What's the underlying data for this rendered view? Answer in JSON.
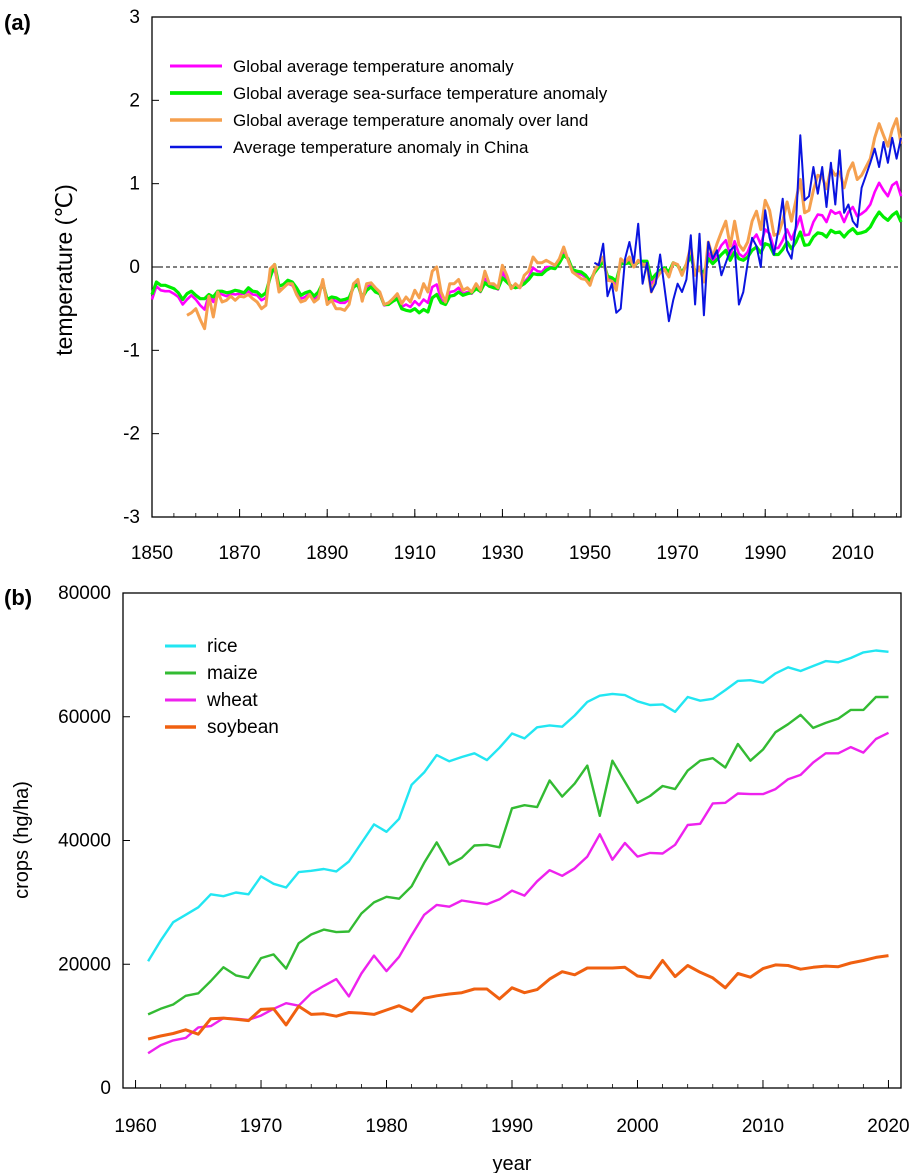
{
  "chart_data": [
    {
      "panel_label": "(a)",
      "type": "line",
      "xlabel": "",
      "ylabel": "temperature (℃)",
      "xlim": [
        1850,
        2021
      ],
      "ylim": [
        -3,
        3
      ],
      "x_ticks": [
        "1850",
        "1870",
        "1890",
        "1910",
        "1930",
        "1950",
        "1970",
        "1990",
        "2010"
      ],
      "y_ticks": [
        "3",
        "2",
        "1",
        "0",
        "-1",
        "-2",
        "-3"
      ],
      "reference_line": 0,
      "grid": false,
      "legend_position": "top-left",
      "series": [
        {
          "name": "Global average temperature anomaly",
          "color": "#ff00ff",
          "x_start": 1850,
          "values": [
            -0.39,
            -0.23,
            -0.28,
            -0.29,
            -0.29,
            -0.32,
            -0.36,
            -0.45,
            -0.39,
            -0.34,
            -0.39,
            -0.46,
            -0.51,
            -0.33,
            -0.42,
            -0.3,
            -0.33,
            -0.35,
            -0.32,
            -0.33,
            -0.32,
            -0.32,
            -0.29,
            -0.33,
            -0.34,
            -0.4,
            -0.37,
            -0.1,
            -0.02,
            -0.28,
            -0.25,
            -0.2,
            -0.22,
            -0.3,
            -0.38,
            -0.36,
            -0.31,
            -0.39,
            -0.34,
            -0.19,
            -0.42,
            -0.38,
            -0.41,
            -0.43,
            -0.43,
            -0.39,
            -0.22,
            -0.2,
            -0.39,
            -0.24,
            -0.22,
            -0.29,
            -0.33,
            -0.46,
            -0.45,
            -0.4,
            -0.36,
            -0.48,
            -0.45,
            -0.48,
            -0.41,
            -0.46,
            -0.39,
            -0.43,
            -0.24,
            -0.21,
            -0.39,
            -0.44,
            -0.3,
            -0.29,
            -0.25,
            -0.32,
            -0.3,
            -0.32,
            -0.24,
            -0.3,
            -0.14,
            -0.22,
            -0.24,
            -0.27,
            -0.06,
            -0.16,
            -0.25,
            -0.24,
            -0.25,
            -0.18,
            -0.12,
            -0.01,
            -0.05,
            -0.06,
            0,
            0,
            -0.01,
            0.07,
            0.18,
            0.09,
            -0.05,
            -0.07,
            -0.09,
            -0.12,
            -0.19,
            -0.06,
            0.01,
            0.08,
            -0.13,
            -0.15,
            -0.21,
            0.06,
            0.04,
            0.07,
            0,
            0.06,
            0.05,
            0.05,
            -0.2,
            -0.11,
            -0.05,
            -0.02,
            -0.08,
            0.05,
            0.03,
            -0.08,
            0.03,
            0.17,
            -0.07,
            -0.02,
            -0.11,
            0.17,
            0.07,
            0.16,
            0.26,
            0.32,
            0.14,
            0.31,
            0.16,
            0.12,
            0.18,
            0.32,
            0.39,
            0.27,
            0.45,
            0.4,
            0.22,
            0.23,
            0.32,
            0.45,
            0.33,
            0.46,
            0.61,
            0.38,
            0.39,
            0.54,
            0.63,
            0.62,
            0.54,
            0.68,
            0.64,
            0.66,
            0.54,
            0.66,
            0.72,
            0.61,
            0.64,
            0.68,
            0.75,
            0.9,
            1.01,
            0.92,
            0.85,
            0.98,
            1.02,
            0.85
          ]
        },
        {
          "name": "Global average sea-surface temperature anomaly",
          "color": "#00ee00",
          "x_start": 1850,
          "values": [
            -0.33,
            -0.18,
            -0.22,
            -0.22,
            -0.24,
            -0.26,
            -0.31,
            -0.39,
            -0.32,
            -0.29,
            -0.34,
            -0.38,
            -0.38,
            -0.33,
            -0.36,
            -0.29,
            -0.29,
            -0.31,
            -0.3,
            -0.28,
            -0.29,
            -0.31,
            -0.25,
            -0.29,
            -0.3,
            -0.35,
            -0.31,
            -0.12,
            0.03,
            -0.23,
            -0.21,
            -0.16,
            -0.18,
            -0.25,
            -0.34,
            -0.31,
            -0.29,
            -0.35,
            -0.3,
            -0.19,
            -0.39,
            -0.36,
            -0.37,
            -0.4,
            -0.39,
            -0.37,
            -0.24,
            -0.21,
            -0.37,
            -0.28,
            -0.24,
            -0.3,
            -0.32,
            -0.45,
            -0.45,
            -0.41,
            -0.38,
            -0.5,
            -0.52,
            -0.53,
            -0.5,
            -0.55,
            -0.51,
            -0.54,
            -0.37,
            -0.33,
            -0.43,
            -0.45,
            -0.35,
            -0.34,
            -0.3,
            -0.34,
            -0.32,
            -0.31,
            -0.26,
            -0.29,
            -0.19,
            -0.23,
            -0.25,
            -0.26,
            -0.13,
            -0.18,
            -0.23,
            -0.25,
            -0.23,
            -0.2,
            -0.15,
            -0.08,
            -0.09,
            -0.09,
            -0.04,
            -0.01,
            -0.02,
            0.05,
            0.14,
            0.1,
            -0.03,
            -0.05,
            -0.06,
            -0.1,
            -0.17,
            -0.07,
            0,
            0.07,
            -0.11,
            -0.13,
            -0.17,
            0.04,
            0.04,
            0.05,
            0.01,
            0.06,
            0.07,
            0.07,
            -0.15,
            -0.09,
            -0.04,
            -0.01,
            -0.06,
            0.05,
            0.02,
            -0.07,
            0.03,
            0.13,
            -0.06,
            -0.03,
            -0.07,
            0.1,
            0.04,
            0.09,
            0.15,
            0.2,
            0.08,
            0.18,
            0.1,
            0.08,
            0.12,
            0.2,
            0.24,
            0.17,
            0.28,
            0.26,
            0.15,
            0.15,
            0.21,
            0.3,
            0.22,
            0.3,
            0.42,
            0.26,
            0.27,
            0.36,
            0.41,
            0.4,
            0.36,
            0.44,
            0.41,
            0.42,
            0.36,
            0.42,
            0.46,
            0.4,
            0.41,
            0.43,
            0.48,
            0.58,
            0.66,
            0.6,
            0.56,
            0.62,
            0.66,
            0.54
          ]
        },
        {
          "name": "Global average temperature anomaly over land",
          "color": "#f5a04f",
          "x_start": 1850,
          "values": [
            null,
            null,
            null,
            null,
            null,
            null,
            null,
            null,
            -0.58,
            -0.55,
            -0.5,
            -0.63,
            -0.74,
            -0.35,
            -0.6,
            -0.3,
            -0.42,
            -0.4,
            -0.35,
            -0.4,
            -0.35,
            -0.36,
            -0.33,
            -0.38,
            -0.42,
            -0.5,
            -0.46,
            -0.02,
            0.03,
            -0.3,
            -0.25,
            -0.2,
            -0.2,
            -0.33,
            -0.42,
            -0.4,
            -0.33,
            -0.42,
            -0.38,
            -0.15,
            -0.45,
            -0.4,
            -0.5,
            -0.5,
            -0.52,
            -0.45,
            -0.2,
            -0.15,
            -0.41,
            -0.2,
            -0.19,
            -0.25,
            -0.3,
            -0.45,
            -0.43,
            -0.38,
            -0.32,
            -0.44,
            -0.36,
            -0.42,
            -0.28,
            -0.37,
            -0.2,
            -0.3,
            -0.05,
            0,
            -0.3,
            -0.42,
            -0.2,
            -0.2,
            -0.15,
            -0.28,
            -0.25,
            -0.3,
            -0.2,
            -0.28,
            -0.05,
            -0.2,
            -0.2,
            -0.25,
            0.02,
            -0.1,
            -0.26,
            -0.2,
            -0.25,
            -0.1,
            -0.05,
            0.12,
            0.05,
            0.05,
            0.08,
            0.05,
            0.02,
            0.1,
            0.24,
            0.08,
            -0.06,
            -0.1,
            -0.14,
            -0.15,
            -0.22,
            -0.05,
            0.04,
            0.12,
            -0.16,
            -0.17,
            -0.28,
            0.1,
            0.05,
            0.12,
            0,
            0.08,
            0.03,
            0.03,
            -0.3,
            -0.15,
            -0.07,
            -0.03,
            -0.12,
            0.05,
            0.03,
            -0.1,
            0.04,
            0.25,
            -0.1,
            0,
            -0.18,
            0.3,
            0.12,
            0.28,
            0.42,
            0.55,
            0.25,
            0.55,
            0.27,
            0.2,
            0.3,
            0.55,
            0.67,
            0.45,
            0.8,
            0.68,
            0.38,
            0.4,
            0.55,
            0.78,
            0.55,
            0.8,
            1.05,
            0.65,
            0.68,
            0.92,
            1.1,
            1.08,
            0.94,
            1.18,
            1.1,
            1.14,
            0.95,
            1.15,
            1.25,
            1.05,
            1.1,
            1.2,
            1.3,
            1.55,
            1.72,
            1.58,
            1.45,
            1.65,
            1.78,
            1.48
          ]
        },
        {
          "name": "Average temperature anomaly in China",
          "color": "#0a14e0",
          "x": [
            1951,
            1952,
            1953,
            1954,
            1955,
            1956,
            1957,
            1958,
            1959,
            1960,
            1961,
            1962,
            1963,
            1964,
            1965,
            1966,
            1967,
            1968,
            1969,
            1970,
            1971,
            1972,
            1973,
            1974,
            1975,
            1976,
            1977,
            1978,
            1979,
            1980,
            1981,
            1982,
            1983,
            1984,
            1985,
            1986,
            1987,
            1988,
            1989,
            1990,
            1991,
            1992,
            1993,
            1994,
            1995,
            1996,
            1997,
            1998,
            1999,
            2000,
            2001,
            2002,
            2003,
            2004,
            2005,
            2006,
            2007,
            2008,
            2009,
            2010,
            2011,
            2012,
            2013,
            2014,
            2015,
            2016,
            2017,
            2018,
            2019,
            2020,
            2021
          ],
          "values": [
            0.05,
            0.02,
            0.28,
            -0.35,
            -0.2,
            -0.55,
            -0.5,
            0.1,
            0.3,
            0.05,
            0.52,
            -0.2,
            0.05,
            -0.3,
            -0.2,
            0.15,
            -0.25,
            -0.65,
            -0.4,
            -0.2,
            -0.3,
            -0.15,
            0.38,
            -0.45,
            0.4,
            -0.58,
            0.3,
            0.1,
            0.2,
            -0.1,
            0.05,
            0.2,
            0.25,
            -0.45,
            -0.3,
            0.05,
            0.35,
            0.25,
            0,
            0.68,
            0.35,
            0.15,
            0.45,
            0.82,
            0.2,
            0.1,
            0.5,
            1.58,
            0.8,
            0.85,
            1.2,
            0.88,
            1.2,
            0.72,
            1.25,
            0.75,
            1.4,
            0.65,
            0.75,
            0.55,
            0.48,
            0.95,
            1.1,
            1.25,
            1.42,
            1.2,
            1.5,
            1.25,
            1.55,
            1.3,
            1.55
          ]
        }
      ]
    },
    {
      "panel_label": "(b)",
      "type": "line",
      "xlabel": "year",
      "ylabel": "crops (hg/ha)",
      "xlim": [
        1959,
        2021
      ],
      "ylim": [
        0,
        80000
      ],
      "x_ticks": [
        "1960",
        "1970",
        "1980",
        "1990",
        "2000",
        "2010",
        "2020"
      ],
      "y_ticks": [
        "80000",
        "60000",
        "40000",
        "20000",
        "0"
      ],
      "grid": false,
      "legend_position": "top-left",
      "x_start": 1961,
      "series": [
        {
          "name": "rice",
          "color": "#22e6f2",
          "values": [
            20500,
            23800,
            26800,
            28000,
            29200,
            31300,
            31000,
            31600,
            31300,
            34200,
            33000,
            32400,
            34900,
            35100,
            35400,
            35000,
            36600,
            39600,
            42600,
            41400,
            43500,
            49000,
            51000,
            53800,
            52800,
            53500,
            54100,
            53000,
            55000,
            57300,
            56500,
            58300,
            58600,
            58400,
            60200,
            62400,
            63400,
            63700,
            63500,
            62500,
            61900,
            62000,
            60800,
            63200,
            62600,
            62900,
            64300,
            65800,
            65900,
            65500,
            67000,
            68000,
            67400,
            68200,
            69000,
            68800,
            69500,
            70400,
            70700,
            70500
          ]
        },
        {
          "name": "maize",
          "color": "#33bb33",
          "values": [
            11900,
            12800,
            13500,
            14900,
            15300,
            17300,
            19500,
            18200,
            17800,
            21000,
            21600,
            19300,
            23400,
            24800,
            25600,
            25200,
            25300,
            28200,
            30000,
            30900,
            30600,
            32600,
            36400,
            39700,
            36100,
            37200,
            39200,
            39300,
            38900,
            45200,
            45700,
            45400,
            49700,
            47100,
            49200,
            52100,
            44000,
            52900,
            49500,
            46100,
            47200,
            48800,
            48300,
            51300,
            52900,
            53300,
            51800,
            55600,
            52900,
            54700,
            57500,
            58800,
            60300,
            58200,
            59000,
            59700,
            61100,
            61100,
            63200,
            63200
          ]
        },
        {
          "name": "wheat",
          "color": "#ee22ee",
          "values": [
            5600,
            6900,
            7700,
            8100,
            9800,
            10000,
            11300,
            11200,
            11000,
            11700,
            12800,
            13700,
            13300,
            15300,
            16500,
            17600,
            14800,
            18500,
            21400,
            18900,
            21200,
            24700,
            28000,
            29600,
            29300,
            30300,
            30000,
            29700,
            30500,
            31900,
            31100,
            33400,
            35200,
            34300,
            35500,
            37400,
            41000,
            36900,
            39600,
            37400,
            38000,
            37900,
            39300,
            42500,
            42700,
            46000,
            46100,
            47600,
            47500,
            47500,
            48300,
            49900,
            50600,
            52600,
            54100,
            54100,
            55100,
            54200,
            56400,
            57400
          ]
        },
        {
          "name": "soybean",
          "color": "#f06010",
          "values": [
            7900,
            8400,
            8800,
            9400,
            8700,
            11200,
            11300,
            11100,
            10900,
            12700,
            12800,
            10200,
            13200,
            11900,
            12000,
            11600,
            12200,
            12100,
            11900,
            12600,
            13300,
            12400,
            14500,
            14900,
            15200,
            15400,
            16000,
            16000,
            14400,
            16200,
            15400,
            15900,
            17600,
            18800,
            18300,
            19400,
            19400,
            19400,
            19500,
            18100,
            17800,
            20600,
            18000,
            19800,
            18700,
            17800,
            16200,
            18500,
            17900,
            19300,
            19900,
            19800,
            19200,
            19500,
            19700,
            19600,
            20200,
            20600,
            21100,
            21400
          ]
        }
      ]
    }
  ]
}
